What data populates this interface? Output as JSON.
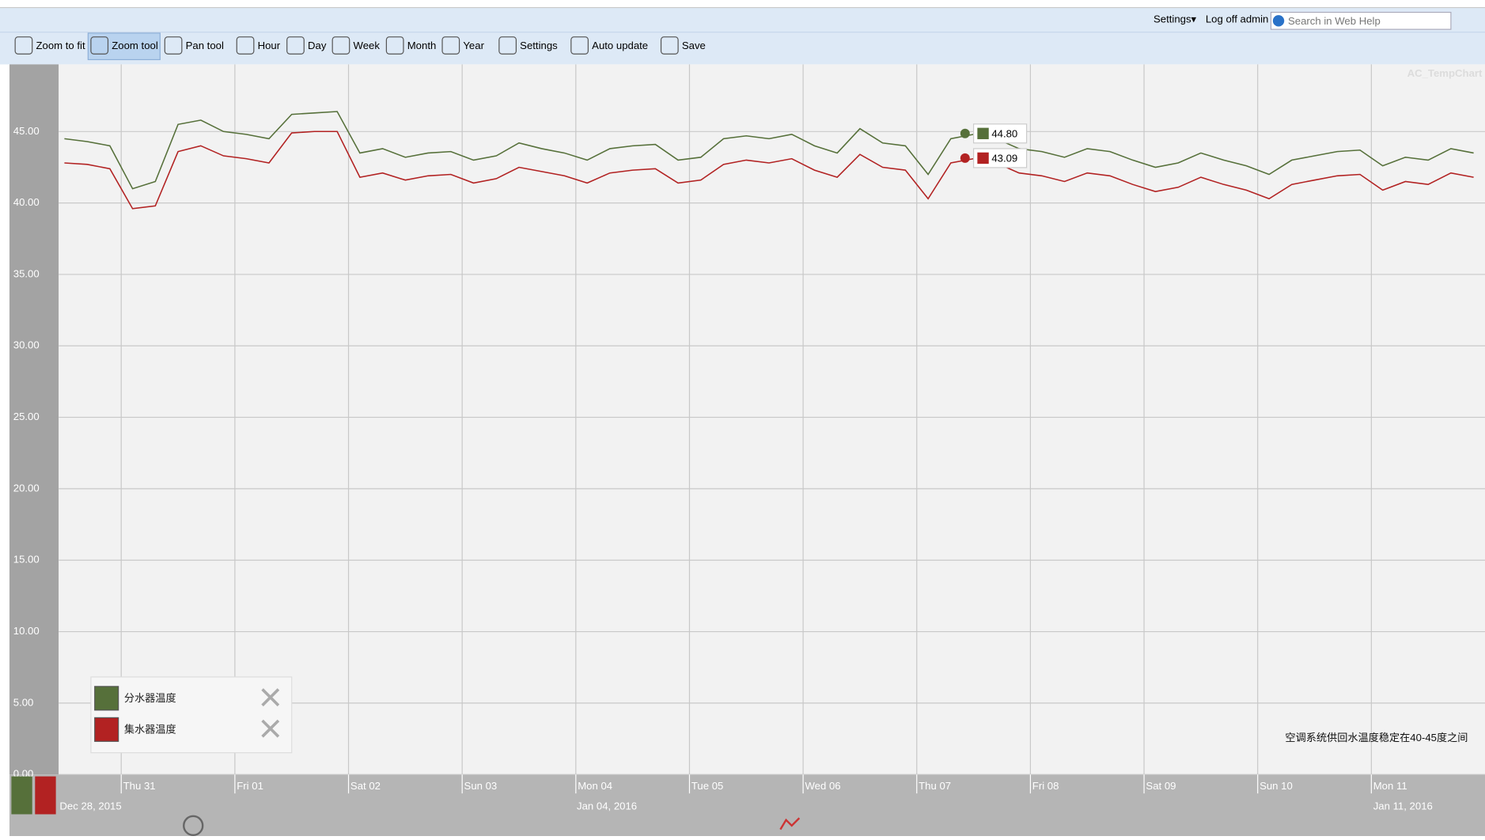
{
  "header": {
    "links": [
      "Settings▾",
      "Log off admin"
    ],
    "search_placeholder": "Search in Web Help"
  },
  "toolbar": {
    "items": [
      "Zoom to fit",
      "Zoom tool",
      "Pan tool",
      "Hour",
      "Day",
      "Week",
      "Month",
      "Year",
      "Settings",
      "Auto update",
      "Save"
    ]
  },
  "chart_data": {
    "type": "line",
    "watermark": "AC_TempChart",
    "caption": "空调系统供回水温度稳定在40-45度之间",
    "x": [
      0.5,
      0.7,
      0.9,
      1.1,
      1.3,
      1.5,
      1.7,
      1.9,
      2.1,
      2.3,
      2.5,
      2.7,
      2.9,
      3.1,
      3.3,
      3.5,
      3.7,
      3.9,
      4.1,
      4.3,
      4.5,
      4.7,
      4.9,
      5.1,
      5.3,
      5.5,
      5.7,
      5.9,
      6.1,
      6.3,
      6.5,
      6.7,
      6.9,
      7.1,
      7.3,
      7.5,
      7.7,
      7.9,
      8.1,
      8.3,
      8.5,
      8.7,
      8.9,
      9.1,
      9.3,
      9.5,
      9.7,
      9.9,
      10.1,
      10.3,
      10.5,
      10.7,
      10.9,
      11.1,
      11.3,
      11.5,
      11.7,
      11.9,
      12.1,
      12.3,
      12.5,
      12.7,
      12.9
    ],
    "series": [
      {
        "name": "分水器温度",
        "color": "#56703a",
        "values": [
          44.5,
          44.3,
          44.0,
          41.0,
          41.5,
          45.5,
          45.8,
          45.0,
          44.8,
          44.5,
          46.2,
          46.3,
          46.4,
          43.5,
          43.8,
          43.2,
          43.5,
          43.6,
          43.0,
          43.3,
          44.2,
          43.8,
          43.5,
          43.0,
          43.8,
          44.0,
          44.1,
          43.0,
          43.2,
          44.5,
          44.7,
          44.5,
          44.8,
          44.0,
          43.5,
          45.2,
          44.2,
          44.0,
          42.0,
          44.5,
          44.8,
          44.5,
          43.8,
          43.6,
          43.2,
          43.8,
          43.6,
          43.0,
          42.5,
          42.8,
          43.5,
          43.0,
          42.6,
          42.0,
          43.0,
          43.3,
          43.6,
          43.7,
          42.6,
          43.2,
          43.0,
          43.8,
          43.5
        ]
      },
      {
        "name": "集水器温度",
        "color": "#b22222",
        "values": [
          42.8,
          42.7,
          42.4,
          39.6,
          39.8,
          43.6,
          44.0,
          43.3,
          43.1,
          42.8,
          44.9,
          45.0,
          45.0,
          41.8,
          42.1,
          41.6,
          41.9,
          42.0,
          41.4,
          41.7,
          42.5,
          42.2,
          41.9,
          41.4,
          42.1,
          42.3,
          42.4,
          41.4,
          41.6,
          42.7,
          43.0,
          42.8,
          43.1,
          42.3,
          41.8,
          43.4,
          42.5,
          42.3,
          40.3,
          42.8,
          43.1,
          42.8,
          42.1,
          41.9,
          41.5,
          42.1,
          41.9,
          41.3,
          40.8,
          41.1,
          41.8,
          41.3,
          40.9,
          40.3,
          41.3,
          41.6,
          41.9,
          42.0,
          40.9,
          41.5,
          41.3,
          42.1,
          41.8
        ]
      }
    ],
    "ylim": [
      0,
      49.7
    ],
    "yticks": [
      {
        "value": 0,
        "label": "0.00"
      },
      {
        "value": 5,
        "label": "5.00"
      },
      {
        "value": 10,
        "label": "10.00"
      },
      {
        "value": 15,
        "label": "15.00"
      },
      {
        "value": 20,
        "label": "20.00"
      },
      {
        "value": 25,
        "label": "25.00"
      },
      {
        "value": 30,
        "label": "30.00"
      },
      {
        "value": 35,
        "label": "35.00"
      },
      {
        "value": 40,
        "label": "40.00"
      },
      {
        "value": 45,
        "label": "45.00"
      }
    ],
    "xlim": [
      0.45,
      13.0
    ],
    "xticks": [
      {
        "value": 1,
        "label": "Thu 31"
      },
      {
        "value": 2,
        "label": "Fri 01"
      },
      {
        "value": 3,
        "label": "Sat 02"
      },
      {
        "value": 4,
        "label": "Sun 03"
      },
      {
        "value": 5,
        "label": "Mon 04"
      },
      {
        "value": 6,
        "label": "Tue 05"
      },
      {
        "value": 7,
        "label": "Wed 06"
      },
      {
        "value": 8,
        "label": "Thu 07"
      },
      {
        "value": 9,
        "label": "Fri 08"
      },
      {
        "value": 10,
        "label": "Sat 09"
      },
      {
        "value": 11,
        "label": "Sun 10"
      },
      {
        "value": 12,
        "label": "Mon 11"
      }
    ],
    "xsublabels": [
      "Dec 28, 2015",
      "Jan 04, 2016",
      "Jan 11, 2016"
    ],
    "annotations": [
      "44.80",
      "43.09"
    ],
    "grid": true
  }
}
